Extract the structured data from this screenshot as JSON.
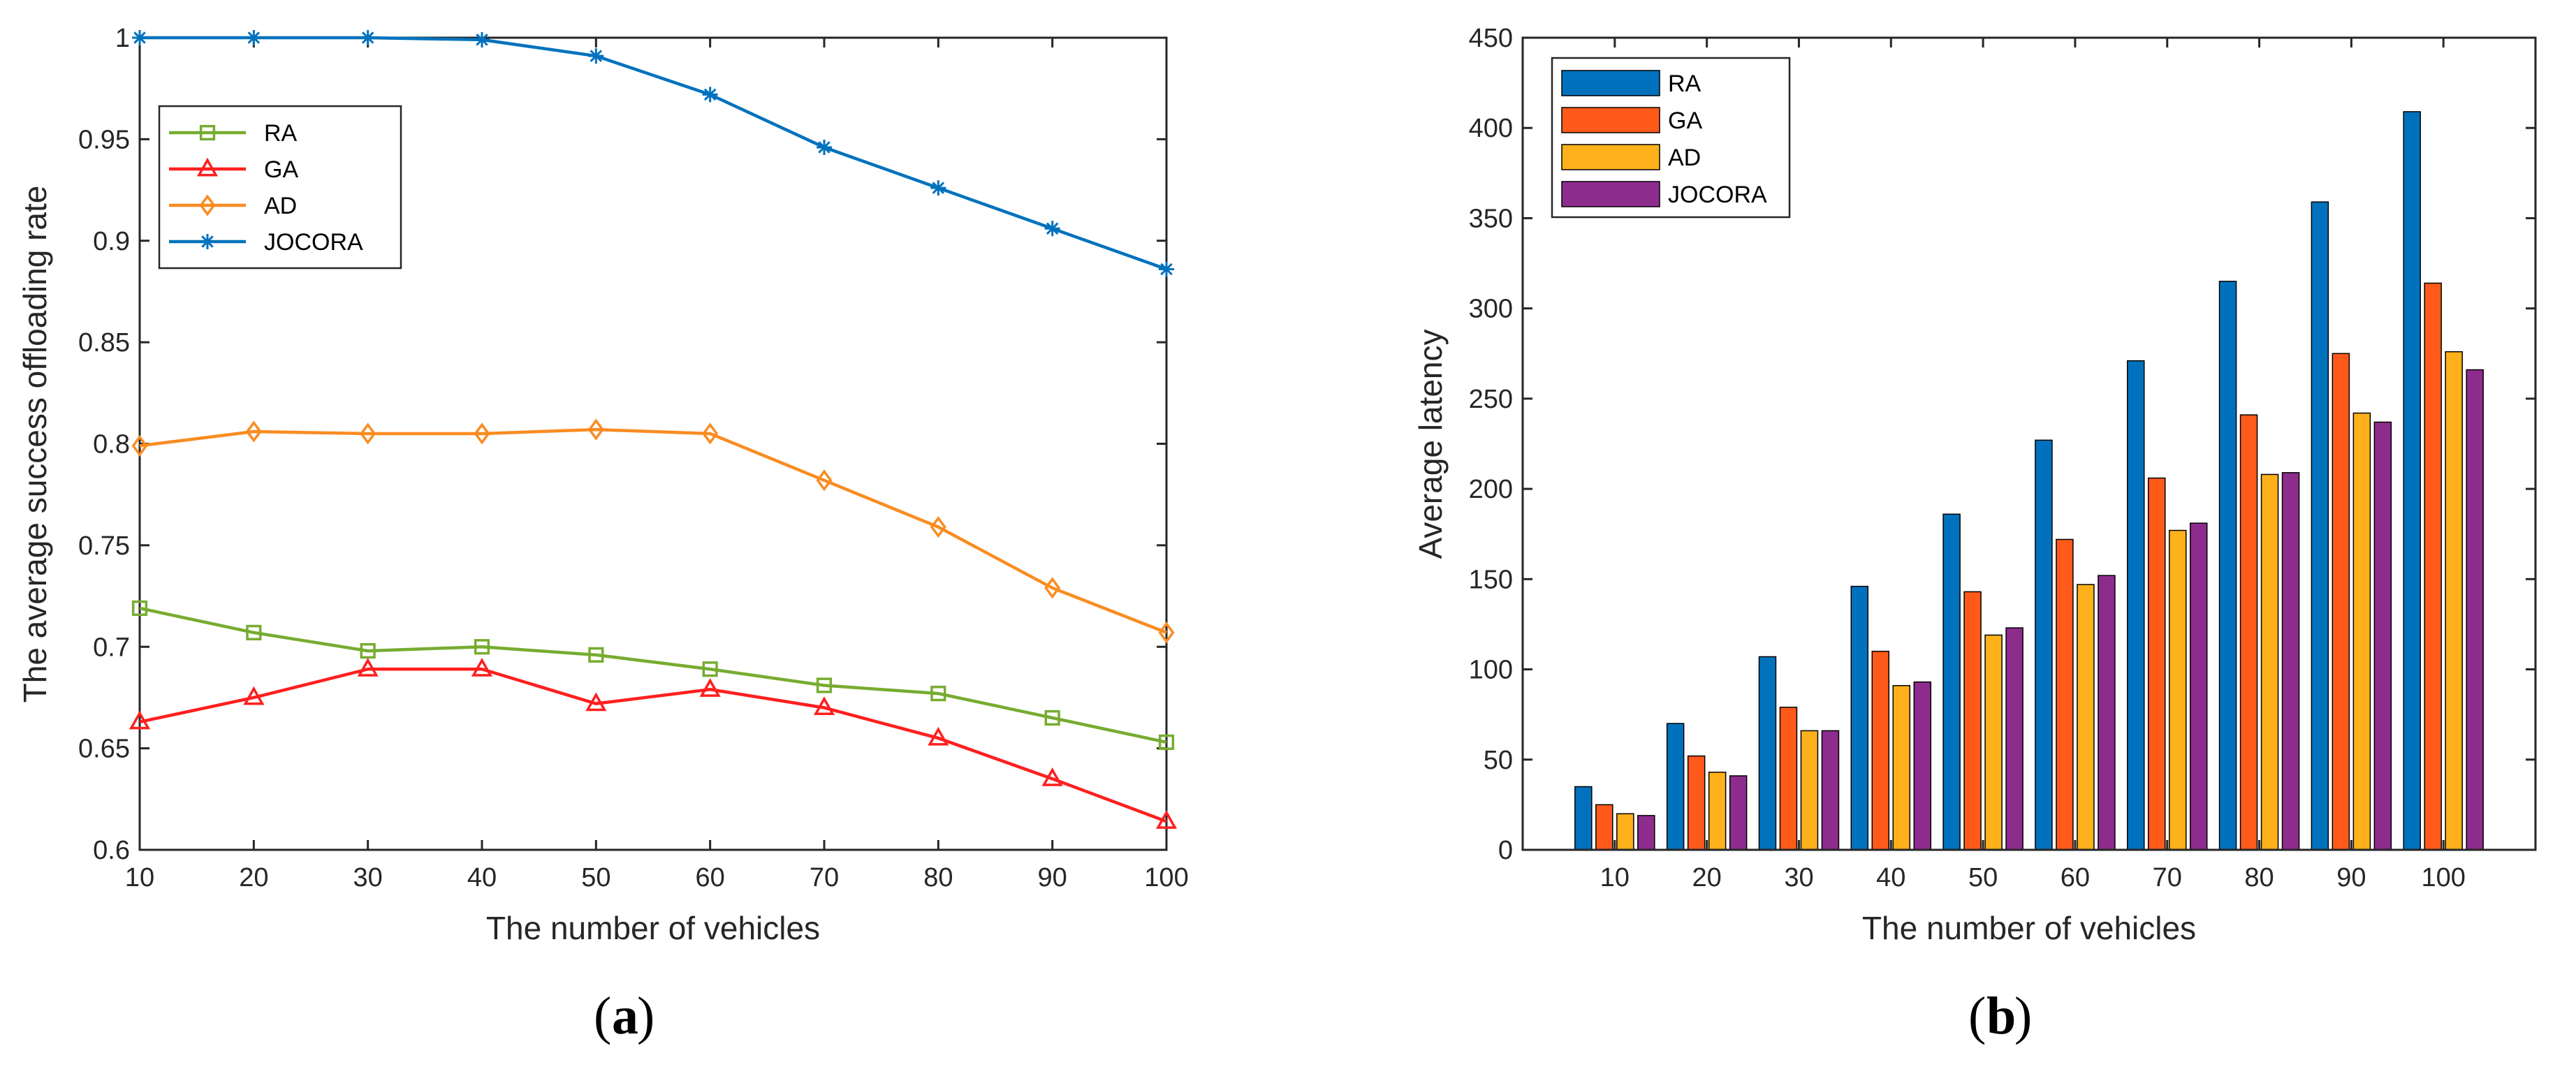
{
  "chart_data": [
    {
      "type": "line",
      "panel_label": "a",
      "xlabel": "The number of vehicles",
      "ylabel": "The average success offloading rate",
      "x": [
        10,
        20,
        30,
        40,
        50,
        60,
        70,
        80,
        90,
        100
      ],
      "xticks": [
        "10",
        "20",
        "30",
        "40",
        "50",
        "60",
        "70",
        "80",
        "90",
        "100"
      ],
      "yticks": [
        "0.6",
        "0.65",
        "0.7",
        "0.75",
        "0.8",
        "0.85",
        "0.9",
        "0.95",
        "1"
      ],
      "xlim": [
        10,
        100
      ],
      "ylim": [
        0.6,
        1.0
      ],
      "legend_position": "upper-left",
      "series": [
        {
          "name": "RA",
          "color": "#77AC30",
          "marker": "square",
          "values": [
            0.719,
            0.707,
            0.698,
            0.7,
            0.696,
            0.689,
            0.681,
            0.677,
            0.665,
            0.653
          ]
        },
        {
          "name": "GA",
          "color": "#FF1F1F",
          "marker": "triangle",
          "values": [
            0.663,
            0.675,
            0.689,
            0.689,
            0.672,
            0.679,
            0.67,
            0.655,
            0.635,
            0.614
          ]
        },
        {
          "name": "AD",
          "color": "#F98C21",
          "marker": "diamond",
          "values": [
            0.799,
            0.806,
            0.805,
            0.805,
            0.807,
            0.805,
            0.782,
            0.759,
            0.729,
            0.707
          ]
        },
        {
          "name": "JOCORA",
          "color": "#0072BD",
          "marker": "asterisk",
          "values": [
            1.0,
            1.0,
            1.0,
            0.999,
            0.991,
            0.972,
            0.946,
            0.926,
            0.906,
            0.886
          ]
        }
      ]
    },
    {
      "type": "bar",
      "panel_label": "b",
      "xlabel": "The number of vehicles",
      "ylabel": "Average latency",
      "categories": [
        "10",
        "20",
        "30",
        "40",
        "50",
        "60",
        "70",
        "80",
        "90",
        "100"
      ],
      "yticks": [
        "0",
        "50",
        "100",
        "150",
        "200",
        "250",
        "300",
        "350",
        "400",
        "450"
      ],
      "ylim": [
        0,
        450
      ],
      "legend_position": "upper-left",
      "series": [
        {
          "name": "RA",
          "color": "#0072BD",
          "values": [
            35,
            70,
            107,
            146,
            186,
            227,
            271,
            315,
            359,
            409
          ]
        },
        {
          "name": "GA",
          "color": "#FF5A1A",
          "values": [
            25,
            52,
            79,
            110,
            143,
            172,
            206,
            241,
            275,
            314
          ]
        },
        {
          "name": "AD",
          "color": "#FFB11B",
          "values": [
            20,
            43,
            66,
            91,
            119,
            147,
            177,
            208,
            242,
            276
          ]
        },
        {
          "name": "JOCORA",
          "color": "#8E2C8E",
          "values": [
            19,
            41,
            66,
            93,
            123,
            152,
            181,
            209,
            237,
            266
          ]
        }
      ]
    }
  ]
}
